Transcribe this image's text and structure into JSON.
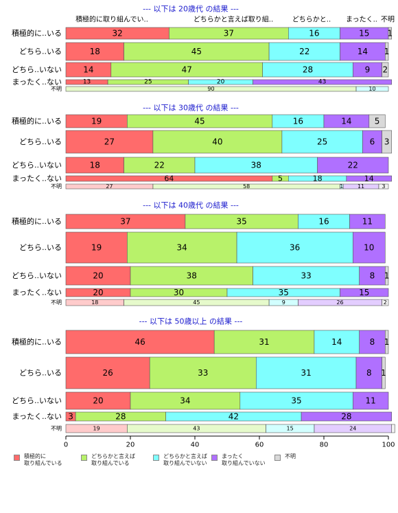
{
  "chart_data": {
    "type": "bar",
    "orientation": "horizontal",
    "stacked": true,
    "xlim": [
      0,
      100
    ],
    "x_ticks": [
      "0",
      "20",
      "40",
      "60",
      "80",
      "100"
    ],
    "legend_position": "bottom",
    "series": [
      {
        "name": "積極的に取り組んでいる",
        "color": "#FF6B6B"
      },
      {
        "name": "どちらかと言えば取り組んでいる",
        "color": "#B8F26A"
      },
      {
        "name": "どちらかと言えば取り組んでいない",
        "color": "#7FFFFF"
      },
      {
        "name": "まったく取り組んでいない",
        "color": "#B070FF"
      },
      {
        "name": "不明",
        "color": "#D9D9D9"
      }
    ],
    "legend_labels": [
      "積極的に\n取り組んでいる",
      "どちらかと言えば\n取り組んでいる",
      "どちらかと言えば\n取り組んでいない",
      "まったく\n取り組んでいない",
      "不明"
    ],
    "column_headers": [
      "積極的に取り組んでい..",
      "どちらかと言えば取り組..",
      "どちらかと..",
      "まったく..",
      "不明"
    ],
    "panels": [
      {
        "title": "--- 以下は 20歳代 の結果 ---",
        "rows": [
          {
            "label": "積極的に..いる",
            "values": [
              32,
              37,
              16,
              15,
              1
            ],
            "labels": [
              "32",
              "37",
              "16",
              "15",
              "1"
            ]
          },
          {
            "label": "どちら..いる",
            "values": [
              18,
              45,
              22,
              14,
              1
            ],
            "labels": [
              "18",
              "45",
              "22",
              "14",
              "1"
            ]
          },
          {
            "label": "どちら..いない",
            "values": [
              14,
              47,
              28,
              9,
              2
            ],
            "labels": [
              "14",
              "47",
              "28",
              "9",
              "2"
            ]
          },
          {
            "label": "まったく..ない",
            "values": [
              13,
              25,
              20,
              43,
              0
            ],
            "labels": [
              "13",
              "25",
              "20",
              "43",
              ""
            ]
          },
          {
            "label": "不明",
            "values": [
              0,
              90,
              10,
              0,
              0
            ],
            "labels": [
              "",
              "90",
              "10",
              "",
              ""
            ]
          }
        ]
      },
      {
        "title": "--- 以下は 30歳代 の結果 ---",
        "rows": [
          {
            "label": "積極的に..いる",
            "values": [
              19,
              45,
              16,
              14,
              5
            ],
            "labels": [
              "19",
              "45",
              "16",
              "14",
              "5"
            ]
          },
          {
            "label": "どちら..いる",
            "values": [
              27,
              40,
              25,
              6,
              3
            ],
            "labels": [
              "27",
              "40",
              "25",
              "6",
              "3"
            ]
          },
          {
            "label": "どちら..いない",
            "values": [
              18,
              22,
              38,
              22,
              0
            ],
            "labels": [
              "18",
              "22",
              "38",
              "22",
              ""
            ]
          },
          {
            "label": "まったく..ない",
            "values": [
              64,
              5,
              18,
              14,
              0
            ],
            "labels": [
              "64",
              "5",
              "18",
              "14",
              ""
            ]
          },
          {
            "label": "不明",
            "values": [
              27,
              58,
              1,
              11,
              3
            ],
            "labels": [
              "27",
              "58",
              "1",
              "11",
              "3"
            ]
          }
        ]
      },
      {
        "title": "--- 以下は 40歳代 の結果 ---",
        "rows": [
          {
            "label": "積極的に..いる",
            "values": [
              37,
              35,
              16,
              11,
              0
            ],
            "labels": [
              "37",
              "35",
              "16",
              "11",
              ""
            ]
          },
          {
            "label": "どちら..いる",
            "values": [
              19,
              34,
              36,
              10,
              0
            ],
            "labels": [
              "19",
              "34",
              "36",
              "10",
              ""
            ]
          },
          {
            "label": "どちら..いない",
            "values": [
              20,
              38,
              33,
              8,
              1
            ],
            "labels": [
              "20",
              "38",
              "33",
              "8",
              "1"
            ]
          },
          {
            "label": "まったく..ない",
            "values": [
              20,
              30,
              35,
              15,
              0
            ],
            "labels": [
              "20",
              "30",
              "35",
              "15",
              ""
            ]
          },
          {
            "label": "不明",
            "values": [
              18,
              45,
              9,
              26,
              2
            ],
            "labels": [
              "18",
              "45",
              "9",
              "26",
              "2"
            ]
          }
        ]
      },
      {
        "title": "--- 以下は 50歳以上 の結果 ---",
        "rows": [
          {
            "label": "積極的に..いる",
            "values": [
              46,
              31,
              14,
              8,
              1
            ],
            "labels": [
              "46",
              "31",
              "14",
              "8",
              "1"
            ]
          },
          {
            "label": "どちら..いる",
            "values": [
              26,
              33,
              31,
              8,
              1
            ],
            "labels": [
              "26",
              "33",
              "31",
              "8",
              "1"
            ]
          },
          {
            "label": "どちら..いない",
            "values": [
              20,
              34,
              35,
              11,
              0
            ],
            "labels": [
              "20",
              "34",
              "35",
              "11",
              ""
            ]
          },
          {
            "label": "まったく..ない",
            "values": [
              3,
              28,
              42,
              28,
              0
            ],
            "labels": [
              "3",
              "28",
              "42",
              "28",
              ""
            ]
          },
          {
            "label": "不明",
            "values": [
              19,
              43,
              15,
              24,
              1
            ],
            "labels": [
              "19",
              "43",
              "15",
              "24",
              ""
            ]
          }
        ]
      }
    ]
  }
}
